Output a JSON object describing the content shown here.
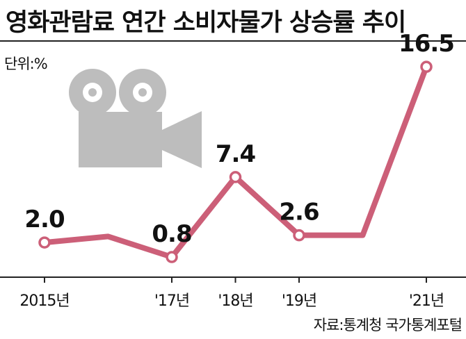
{
  "title": "영화관람료 연간 소비자물가 상승률 추이",
  "unit_label": "단위:%",
  "source": "자료:통계청 국가통계포털",
  "colors": {
    "line": "#cc5f78",
    "marker_fill": "#ffffff",
    "icon": "#bdbdbd",
    "axis": "#222222"
  },
  "icon": "movie-camera-icon",
  "chart_data": {
    "type": "line",
    "title": "영화관람료 연간 소비자물가 상승률 추이",
    "ylabel": "단위:%",
    "x": [
      "2015",
      "2016",
      "2017",
      "2018",
      "2019",
      "2020",
      "2021"
    ],
    "tick_labels": [
      "2015년",
      "'17년",
      "'18년",
      "'19년",
      "'21년"
    ],
    "tick_years": [
      "2015",
      "2017",
      "2018",
      "2019",
      "2021"
    ],
    "series": [
      {
        "values": [
          2.0,
          2.5,
          0.8,
          7.4,
          2.6,
          2.6,
          16.5
        ]
      }
    ],
    "data_labels": [
      {
        "year": "2015",
        "text": "2.0"
      },
      {
        "year": "2017",
        "text": "0.8"
      },
      {
        "year": "2018",
        "text": "7.4"
      },
      {
        "year": "2019",
        "text": "2.6"
      },
      {
        "year": "2021",
        "text": "16.5"
      }
    ],
    "marked_years": [
      "2015",
      "2017",
      "2018",
      "2019",
      "2021"
    ],
    "ylim": [
      0,
      18
    ],
    "grid": false,
    "legend": "none"
  }
}
